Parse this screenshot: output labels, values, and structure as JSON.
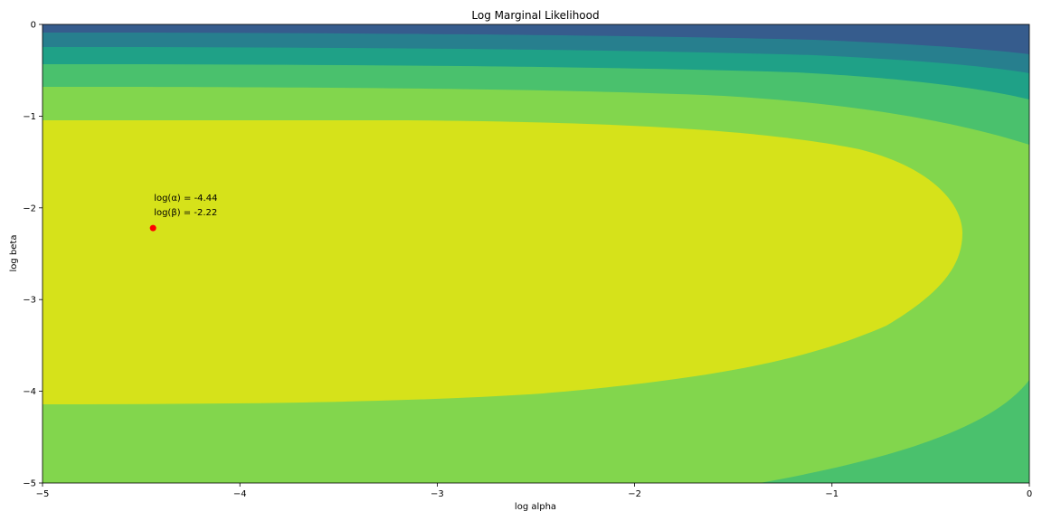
{
  "chart_data": {
    "type": "contour",
    "title": "Log Marginal Likelihood",
    "xlabel": "log alpha",
    "ylabel": "log beta",
    "xlim": [
      -5,
      0
    ],
    "ylim": [
      -5,
      0
    ],
    "xticks": [
      -5,
      -4,
      -3,
      -2,
      -1,
      0
    ],
    "yticks": [
      0,
      -1,
      -2,
      -3,
      -4,
      -5
    ],
    "grid": false,
    "colormap": "viridis",
    "levels": 8,
    "maximum": {
      "x": -4.44,
      "y": -2.22,
      "marker_color": "#ff0000",
      "label_alpha": "log(α) = -4.44",
      "label_beta": "log(β) = -2.22"
    }
  }
}
